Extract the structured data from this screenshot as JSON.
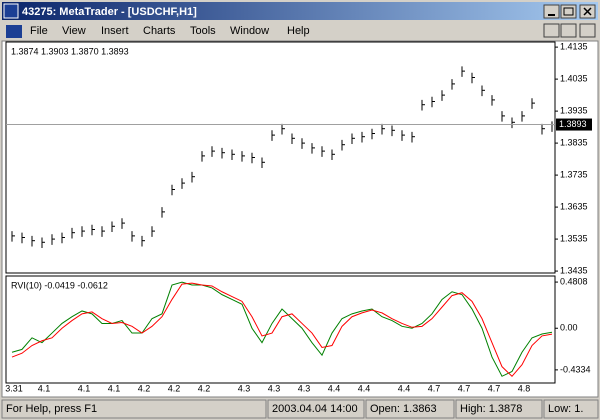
{
  "window": {
    "title": "43275: MetaTrader - [USDCHF,H1]",
    "menu": [
      "File",
      "View",
      "Insert",
      "Charts",
      "Tools",
      "Window",
      "Help"
    ]
  },
  "chart_data": [
    {
      "type": "hlc",
      "header": "1.3874 1.3903 1.3870 1.3893",
      "color": "#000000",
      "high": [
        1.356,
        1.3555,
        1.3545,
        1.354,
        1.355,
        1.3555,
        1.357,
        1.3575,
        1.358,
        1.3575,
        1.359,
        1.36,
        1.356,
        1.3545,
        1.3575,
        1.3635,
        1.3705,
        1.3725,
        1.3745,
        1.381,
        1.3825,
        1.382,
        1.3815,
        1.381,
        1.3805,
        1.379,
        1.3875,
        1.3895,
        1.3865,
        1.385,
        1.3835,
        1.3825,
        1.3815,
        1.3845,
        1.3865,
        1.387,
        1.388,
        1.3895,
        1.389,
        1.3875,
        1.387,
        1.397,
        1.398,
        1.4,
        1.4035,
        1.4075,
        1.4055,
        1.4015,
        1.3985,
        1.3935,
        1.3915,
        1.3935,
        1.3975,
        1.3895,
        1.3903
      ],
      "low": [
        1.3527,
        1.3522,
        1.3512,
        1.3507,
        1.3517,
        1.3522,
        1.3537,
        1.3542,
        1.3547,
        1.3542,
        1.3557,
        1.3567,
        1.3527,
        1.3512,
        1.3542,
        1.3602,
        1.3672,
        1.3692,
        1.3712,
        1.3777,
        1.3792,
        1.3787,
        1.3782,
        1.3777,
        1.3772,
        1.3757,
        1.3842,
        1.3862,
        1.3832,
        1.3817,
        1.3802,
        1.3792,
        1.3782,
        1.3812,
        1.3832,
        1.3837,
        1.3847,
        1.3862,
        1.3857,
        1.3842,
        1.3837,
        1.3937,
        1.3947,
        1.3967,
        1.4002,
        1.4042,
        1.4022,
        1.3982,
        1.3952,
        1.3902,
        1.3882,
        1.3902,
        1.3942,
        1.3862,
        1.387
      ],
      "close": [
        1.3545,
        1.354,
        1.353,
        1.3525,
        1.3535,
        1.354,
        1.3555,
        1.356,
        1.3565,
        1.356,
        1.3575,
        1.3585,
        1.3545,
        1.353,
        1.356,
        1.362,
        1.369,
        1.371,
        1.373,
        1.3795,
        1.381,
        1.3805,
        1.38,
        1.3795,
        1.379,
        1.3775,
        1.386,
        1.388,
        1.385,
        1.3835,
        1.382,
        1.381,
        1.38,
        1.383,
        1.385,
        1.3855,
        1.3865,
        1.388,
        1.3875,
        1.386,
        1.3855,
        1.3955,
        1.3965,
        1.3985,
        1.402,
        1.406,
        1.404,
        1.4,
        1.397,
        1.392,
        1.39,
        1.392,
        1.396,
        1.388,
        1.3893
      ],
      "last_price": 1.3893,
      "ylim": [
        1.3429,
        1.4151
      ],
      "yticks": [
        1.4135,
        1.4035,
        1.3935,
        1.3835,
        1.3735,
        1.3635,
        1.3535,
        1.3435
      ]
    },
    {
      "type": "line",
      "header": "RVI(10)  -0.0419  -0.0612",
      "categories": [
        "3.31",
        null,
        null,
        "4.1",
        null,
        null,
        null,
        "4.1",
        null,
        null,
        "4.1",
        null,
        null,
        "4.2",
        null,
        null,
        "4.2",
        null,
        null,
        "4.2",
        null,
        null,
        null,
        "4.3",
        null,
        null,
        "4.3",
        null,
        null,
        "4.3",
        null,
        null,
        "4.4",
        null,
        null,
        "4.4",
        null,
        null,
        null,
        "4.4",
        null,
        null,
        "4.7",
        null,
        null,
        "4.7",
        null,
        null,
        "4.7",
        null,
        null,
        "4.8",
        null,
        null,
        null
      ],
      "series": [
        {
          "color": "#008000",
          "values": [
            -0.25,
            -0.22,
            -0.1,
            -0.15,
            -0.05,
            0.05,
            0.12,
            0.18,
            0.15,
            0.05,
            0.05,
            0.08,
            -0.05,
            -0.05,
            0.1,
            0.15,
            0.45,
            0.48,
            0.45,
            0.45,
            0.42,
            0.35,
            0.3,
            0.25,
            0.0,
            -0.15,
            0.05,
            0.2,
            0.1,
            0.0,
            -0.15,
            -0.28,
            -0.05,
            0.1,
            0.15,
            0.18,
            0.2,
            0.12,
            0.08,
            0.02,
            0.0,
            0.05,
            0.15,
            0.3,
            0.38,
            0.35,
            0.2,
            0.0,
            -0.3,
            -0.5,
            -0.45,
            -0.25,
            -0.1,
            -0.06,
            -0.0419
          ]
        },
        {
          "color": "#ff0000",
          "values": [
            -0.3,
            -0.26,
            -0.18,
            -0.13,
            -0.1,
            0.0,
            0.08,
            0.15,
            0.17,
            0.1,
            0.05,
            0.06,
            0.02,
            -0.05,
            0.02,
            0.12,
            0.3,
            0.46,
            0.47,
            0.45,
            0.44,
            0.38,
            0.33,
            0.28,
            0.12,
            -0.08,
            -0.05,
            0.12,
            0.15,
            0.05,
            -0.05,
            -0.2,
            -0.18,
            0.02,
            0.12,
            0.16,
            0.19,
            0.16,
            0.1,
            0.05,
            0.01,
            0.02,
            0.1,
            0.22,
            0.34,
            0.37,
            0.28,
            0.1,
            -0.15,
            -0.4,
            -0.5,
            -0.38,
            -0.18,
            -0.08,
            -0.0612
          ]
        }
      ],
      "ylim": [
        -0.57,
        0.544
      ],
      "yticks": [
        0.4808,
        {
          "value": 0,
          "label": "0.00"
        },
        -0.4334
      ]
    }
  ],
  "status_bar": [
    "For Help, press F1",
    "2003.04.04 14:00",
    "Open: 1.3863",
    "High: 1.3878",
    "Low: 1."
  ]
}
